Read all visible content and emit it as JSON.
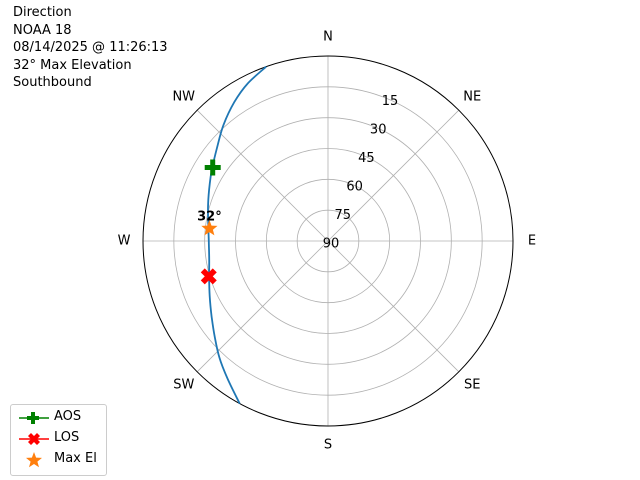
{
  "title_lines": [
    "Direction",
    "NOAA 18",
    "08/14/2025 @ 11:26:13",
    "32° Max Elevation",
    "Southbound"
  ],
  "chart_data": {
    "type": "polar-skyplot",
    "theta_labels": [
      {
        "az": 0,
        "label": "N"
      },
      {
        "az": 45,
        "label": "NE"
      },
      {
        "az": 90,
        "label": "E"
      },
      {
        "az": 135,
        "label": "SE"
      },
      {
        "az": 180,
        "label": "S"
      },
      {
        "az": 225,
        "label": "SW"
      },
      {
        "az": 270,
        "label": "W"
      },
      {
        "az": 315,
        "label": "NW"
      }
    ],
    "radial_ticks": [
      90,
      75,
      60,
      45,
      30,
      15
    ],
    "radial_labels": [
      "90",
      "75",
      "60",
      "45",
      "30",
      "15"
    ],
    "elevation_range": [
      0,
      90
    ],
    "grid": true,
    "track": {
      "azimuth_deg": [
        340.5,
        333,
        326,
        318,
        310,
        302,
        296,
        287,
        279,
        270,
        261,
        253,
        245,
        237,
        230,
        223,
        216,
        208.5
      ],
      "elevation_deg": [
        0,
        4,
        8.5,
        14,
        19.5,
        23.5,
        26,
        29,
        31,
        32,
        31.5,
        29.5,
        26.5,
        22.5,
        18,
        12.5,
        7,
        0
      ]
    },
    "color": "#1f77b4",
    "markers": {
      "aos": {
        "azimuth_deg": 302.5,
        "elevation_deg": 23.5,
        "color": "#008000"
      },
      "los": {
        "azimuth_deg": 253.5,
        "elevation_deg": 29.5,
        "color": "#ff0000"
      },
      "max_el": {
        "azimuth_deg": 276,
        "elevation_deg": 32,
        "color": "#ff7f0e",
        "label": "32°"
      }
    },
    "legend": {
      "placement": "lower-left",
      "entries": [
        "AOS",
        "LOS",
        "Max El"
      ]
    }
  }
}
